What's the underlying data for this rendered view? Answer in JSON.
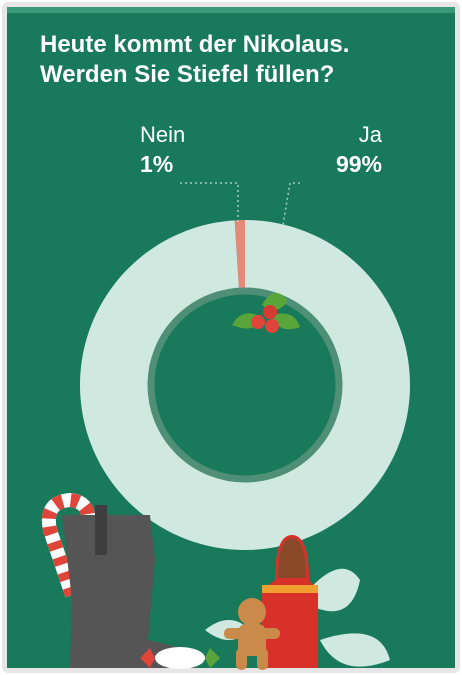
{
  "chart_data": {
    "type": "pie",
    "title": "Heute kommt der Nikolaus. Werden Sie Stiefel füllen?",
    "categories": [
      "Nein",
      "Ja"
    ],
    "values": [
      1,
      99
    ],
    "value_labels": [
      "1%",
      "99%"
    ],
    "colors": [
      "#e58a79",
      "#cfe9e1"
    ],
    "donut": true
  }
}
